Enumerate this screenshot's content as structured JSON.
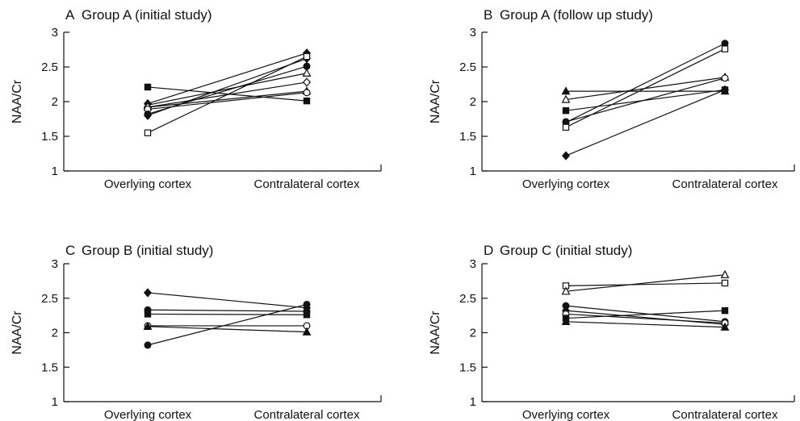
{
  "chart_data": [
    {
      "type": "line",
      "panel": "A",
      "title": "Group A (initial study)",
      "ylabel": "NAA/Cr",
      "xlabel": "",
      "categories": [
        "Overlying cortex",
        "Contralateral cortex"
      ],
      "ylim": [
        1,
        3
      ],
      "yticks": [
        "1",
        "1.5",
        "2",
        "2.5",
        "3"
      ],
      "grid": false,
      "series": [
        {
          "marker": "filled-square",
          "values": [
            2.21,
            2.01
          ]
        },
        {
          "marker": "filled-diamond",
          "values": [
            1.97,
            2.7
          ]
        },
        {
          "marker": "open-triangle",
          "values": [
            1.95,
            2.41
          ]
        },
        {
          "marker": "filled-triangle",
          "values": [
            1.92,
            2.15
          ]
        },
        {
          "marker": "open-diamond",
          "values": [
            1.92,
            2.28
          ]
        },
        {
          "marker": "open-circle",
          "values": [
            1.89,
            2.13
          ]
        },
        {
          "marker": "filled-circle",
          "values": [
            1.82,
            2.51
          ]
        },
        {
          "marker": "filled-diamond",
          "values": [
            1.8,
            2.62
          ]
        },
        {
          "marker": "open-square",
          "values": [
            1.55,
            2.65
          ]
        }
      ]
    },
    {
      "type": "line",
      "panel": "B",
      "title": "Group A (follow up study)",
      "ylabel": "NAA/Cr",
      "xlabel": "",
      "categories": [
        "Overlying cortex",
        "Contralateral cortex"
      ],
      "ylim": [
        1,
        3
      ],
      "yticks": [
        "1",
        "1.5",
        "2",
        "2.5",
        "3"
      ],
      "grid": false,
      "series": [
        {
          "marker": "filled-triangle",
          "values": [
            2.15,
            2.15
          ]
        },
        {
          "marker": "open-triangle",
          "values": [
            2.03,
            2.35
          ]
        },
        {
          "marker": "filled-square",
          "values": [
            1.87,
            2.17
          ]
        },
        {
          "marker": "open-circle",
          "values": [
            1.71,
            2.34
          ]
        },
        {
          "marker": "filled-circle",
          "values": [
            1.7,
            2.84
          ]
        },
        {
          "marker": "open-square",
          "values": [
            1.63,
            2.76
          ]
        },
        {
          "marker": "filled-diamond",
          "values": [
            1.22,
            2.17
          ]
        }
      ]
    },
    {
      "type": "line",
      "panel": "C",
      "title": "Group B (initial study)",
      "ylabel": "NAA/Cr",
      "xlabel": "",
      "categories": [
        "Overlying cortex",
        "Contralateral cortex"
      ],
      "ylim": [
        1,
        3
      ],
      "yticks": [
        "1",
        "1.5",
        "2",
        "2.5",
        "3"
      ],
      "grid": false,
      "series": [
        {
          "marker": "filled-diamond",
          "values": [
            2.58,
            2.36
          ]
        },
        {
          "marker": "filled-circle",
          "values": [
            2.33,
            2.31
          ]
        },
        {
          "marker": "filled-square",
          "values": [
            2.27,
            2.26
          ]
        },
        {
          "marker": "open-circle",
          "values": [
            2.1,
            2.1
          ]
        },
        {
          "marker": "filled-triangle",
          "values": [
            2.09,
            2.01
          ]
        },
        {
          "marker": "filled-circle",
          "values": [
            1.82,
            2.41
          ]
        }
      ]
    },
    {
      "type": "line",
      "panel": "D",
      "title": "Group C (initial study)",
      "ylabel": "NAA/Cr",
      "xlabel": "",
      "categories": [
        "Overlying cortex",
        "Contralateral cortex"
      ],
      "ylim": [
        1,
        3
      ],
      "yticks": [
        "1",
        "1.5",
        "2",
        "2.5",
        "3"
      ],
      "grid": false,
      "series": [
        {
          "marker": "open-square",
          "values": [
            2.68,
            2.72
          ]
        },
        {
          "marker": "open-triangle",
          "values": [
            2.6,
            2.84
          ]
        },
        {
          "marker": "filled-circle",
          "values": [
            2.39,
            2.16
          ]
        },
        {
          "marker": "filled-diamond",
          "values": [
            2.32,
            2.12
          ]
        },
        {
          "marker": "open-circle",
          "values": [
            2.27,
            2.14
          ]
        },
        {
          "marker": "filled-square",
          "values": [
            2.21,
            2.32
          ]
        },
        {
          "marker": "filled-triangle",
          "values": [
            2.16,
            2.08
          ]
        }
      ]
    }
  ]
}
